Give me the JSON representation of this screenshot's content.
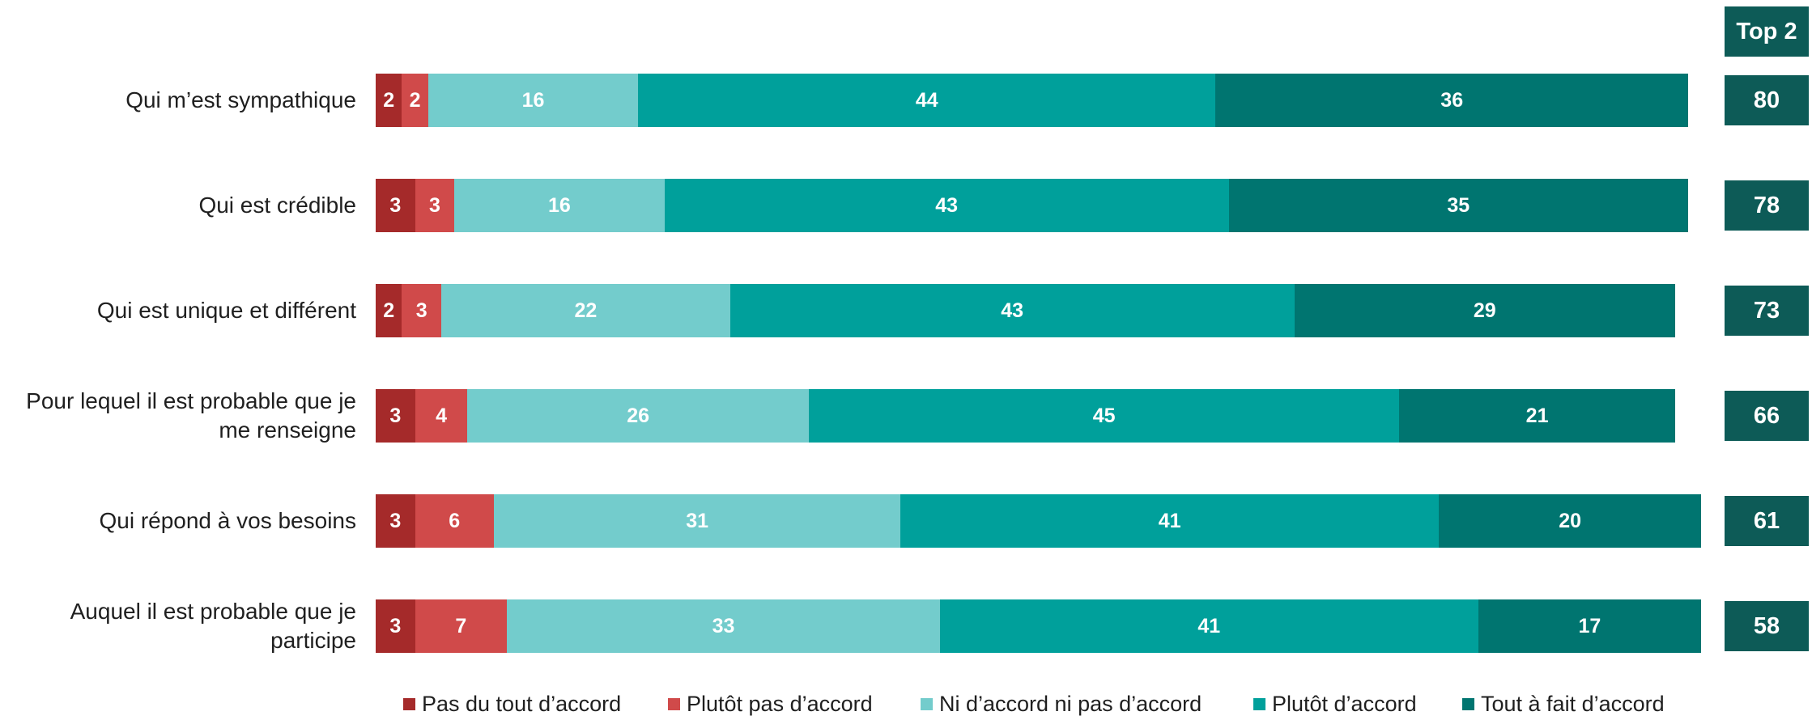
{
  "chart_data": {
    "type": "bar",
    "orientation": "horizontal",
    "stacked": true,
    "title": "",
    "xlabel": "",
    "ylabel": "",
    "xlim": [
      0,
      100
    ],
    "grid": false,
    "legend_position": "bottom",
    "categories": [
      "Qui m’est sympathique",
      "Qui est crédible",
      "Qui est unique et différent",
      "Pour lequel il est probable que je me renseigne",
      "Qui répond à vos besoins",
      "Auquel il est probable que je participe"
    ],
    "category_lines": [
      [
        "Qui m’est sympathique"
      ],
      [
        "Qui est crédible"
      ],
      [
        "Qui est unique et différent"
      ],
      [
        "Pour lequel il est probable que je",
        "me renseigne"
      ],
      [
        "Qui répond à vos besoins"
      ],
      [
        "Auquel il est probable que je",
        "participe"
      ]
    ],
    "series": [
      {
        "name": "Pas du tout d’accord",
        "color": "#a52a2a",
        "values": [
          2,
          3,
          2,
          3,
          3,
          3
        ]
      },
      {
        "name": "Plutôt pas d’accord",
        "color": "#d04a4a",
        "values": [
          2,
          3,
          3,
          4,
          6,
          7
        ]
      },
      {
        "name": "Ni d’accord ni pas d’accord",
        "color": "#73cccc",
        "values": [
          16,
          16,
          22,
          26,
          31,
          33
        ]
      },
      {
        "name": "Plutôt d’accord",
        "color": "#00a09b",
        "values": [
          44,
          43,
          43,
          45,
          41,
          41
        ]
      },
      {
        "name": "Tout à fait d’accord",
        "color": "#007570",
        "values": [
          36,
          35,
          29,
          21,
          20,
          17
        ]
      }
    ],
    "top2": {
      "header": "Top 2",
      "color": "#0d5b57",
      "values": [
        80,
        78,
        73,
        66,
        61,
        58
      ]
    }
  }
}
